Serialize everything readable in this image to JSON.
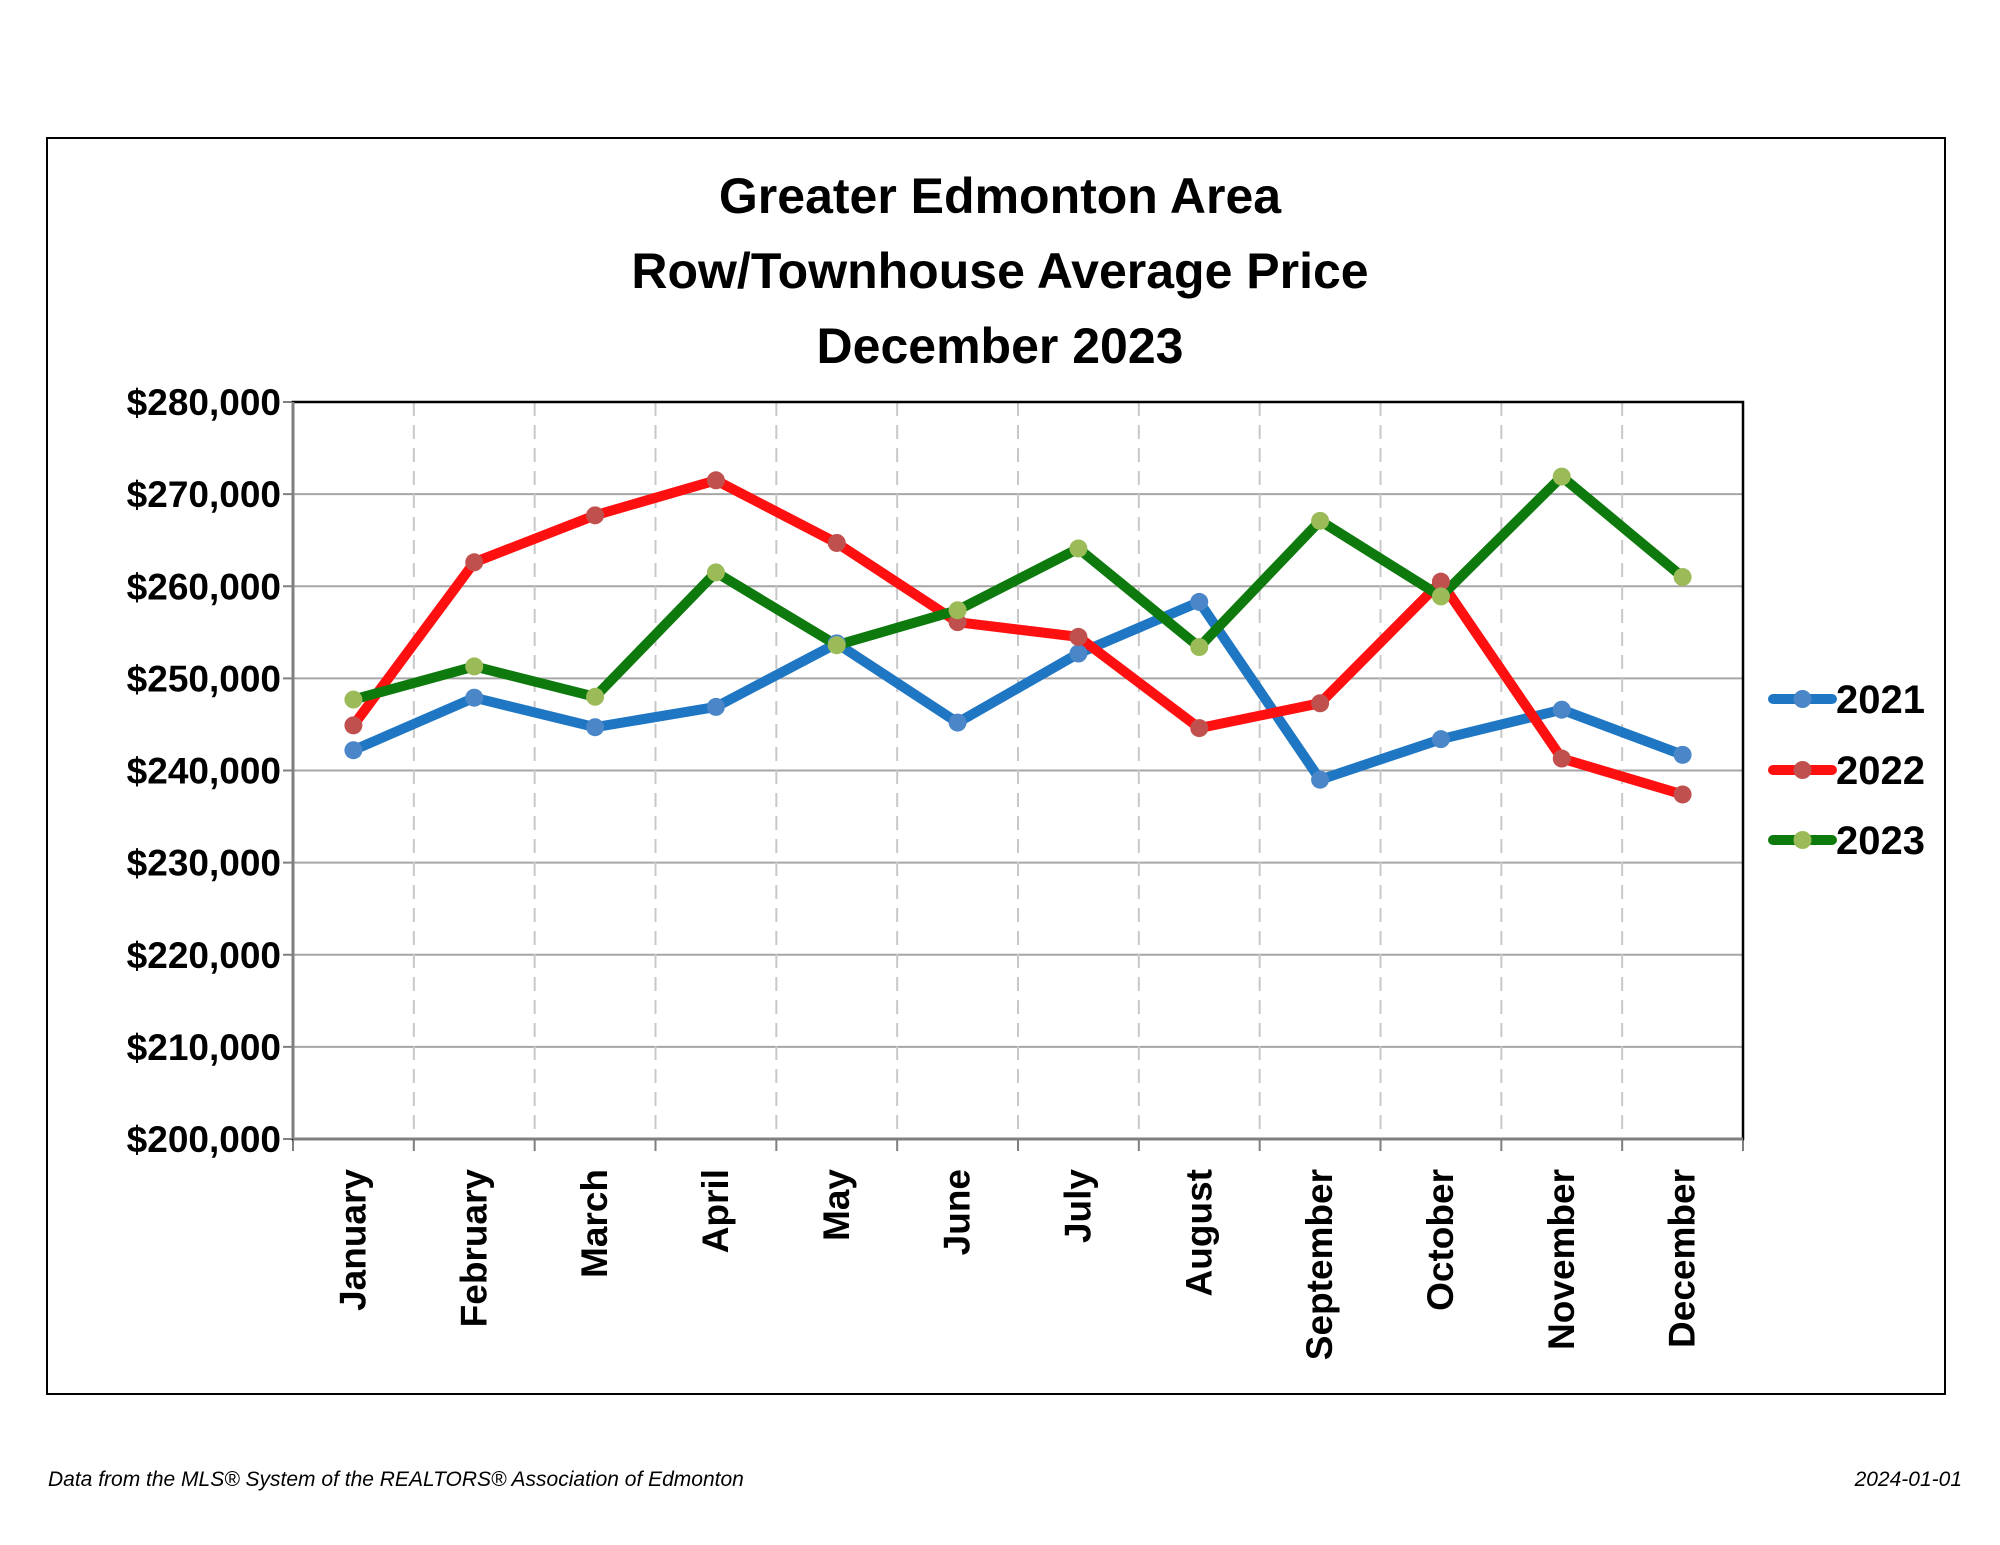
{
  "chart_data": {
    "type": "line",
    "title": [
      "Greater Edmonton Area",
      "Row/Townhouse Average Price",
      "December 2023"
    ],
    "categories": [
      "January",
      "February",
      "March",
      "April",
      "May",
      "June",
      "July",
      "August",
      "September",
      "October",
      "November",
      "December"
    ],
    "series": [
      {
        "name": "2021",
        "color": "#1f77c4",
        "marker_color": "#4a86c8",
        "values": [
          242200,
          247900,
          244700,
          246900,
          253800,
          245200,
          252700,
          258300,
          239000,
          243400,
          246600,
          241700
        ]
      },
      {
        "name": "2022",
        "color": "#ff1010",
        "marker_color": "#c0504d",
        "values": [
          244900,
          262600,
          267700,
          271500,
          264700,
          256100,
          254500,
          244600,
          247300,
          260500,
          241300,
          237400
        ]
      },
      {
        "name": "2023",
        "color": "#0e7a0e",
        "marker_color": "#9bbb59",
        "values": [
          247700,
          251300,
          248000,
          261500,
          253600,
          257400,
          264100,
          253400,
          267100,
          258900,
          271900,
          261000
        ]
      }
    ],
    "ylim": [
      200000,
      280000
    ],
    "yticks": [
      200000,
      210000,
      220000,
      230000,
      240000,
      250000,
      260000,
      270000,
      280000
    ],
    "ytick_labels": [
      "$200,000",
      "$210,000",
      "$220,000",
      "$230,000",
      "$240,000",
      "$250,000",
      "$260,000",
      "$270,000",
      "$280,000"
    ],
    "xlabel": "",
    "ylabel": "",
    "grid": {
      "horizontal": "solid",
      "vertical": "dashed"
    },
    "legend_position": "right"
  },
  "footer": {
    "source": "Data from the MLS® System of the REALTORS® Association of Edmonton",
    "date": "2024-01-01"
  }
}
